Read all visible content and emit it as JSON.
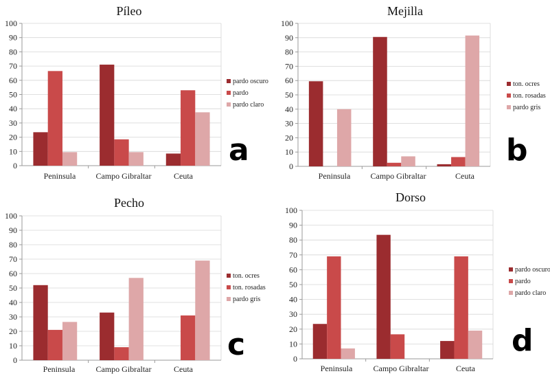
{
  "colors": {
    "dark": "#9b2c2f",
    "mid": "#c94a4a",
    "light": "#dea7a8"
  },
  "chart_data": [
    {
      "type": "bar",
      "title": "Píleo",
      "panel_letter": "a",
      "categories": [
        "Peninsula",
        "Campo Gibraltar",
        "Ceuta"
      ],
      "ylim": [
        0,
        100
      ],
      "yticks": [
        "0",
        "10",
        "20",
        "30",
        "40",
        "50",
        "60",
        "70",
        "80",
        "90",
        "100"
      ],
      "grid": true,
      "legend_position": "right",
      "series": [
        {
          "name": "pardo oscuro",
          "values": [
            23.5,
            71,
            8.5
          ]
        },
        {
          "name": "pardo",
          "values": [
            66.5,
            18.5,
            53
          ]
        },
        {
          "name": "pardo claro",
          "values": [
            9.5,
            9.5,
            37.5
          ]
        }
      ]
    },
    {
      "type": "bar",
      "title": "Mejilla",
      "panel_letter": "b",
      "categories": [
        "Peninsula",
        "Campo Gibraltar",
        "Ceuta"
      ],
      "ylim": [
        0,
        100
      ],
      "yticks": [
        "0",
        "10",
        "20",
        "30",
        "40",
        "50",
        "60",
        "70",
        "80",
        "90",
        "100"
      ],
      "grid": true,
      "legend_position": "right",
      "series": [
        {
          "name": "ton. ocres",
          "values": [
            59.5,
            90.5,
            1.5
          ]
        },
        {
          "name": "ton. rosadas",
          "values": [
            0,
            2.5,
            6.5
          ]
        },
        {
          "name": "pardo gris",
          "values": [
            40,
            7,
            91.5
          ]
        }
      ]
    },
    {
      "type": "bar",
      "title": "Pecho",
      "panel_letter": "c",
      "categories": [
        "Peninsula",
        "Campo Gibraltar",
        "Ceuta"
      ],
      "ylim": [
        0,
        100
      ],
      "yticks": [
        "0",
        "10",
        "20",
        "30",
        "40",
        "50",
        "60",
        "70",
        "80",
        "90",
        "100"
      ],
      "grid": true,
      "legend_position": "right",
      "series": [
        {
          "name": "ton. ocres",
          "values": [
            52,
            33,
            0
          ]
        },
        {
          "name": "ton. rosadas",
          "values": [
            21,
            9,
            31
          ]
        },
        {
          "name": "pardo gris",
          "values": [
            26.5,
            57,
            69
          ]
        }
      ]
    },
    {
      "type": "bar",
      "title": "Dorso",
      "panel_letter": "d",
      "categories": [
        "Peninsula",
        "Campo Gibraltar",
        "Ceuta"
      ],
      "ylim": [
        0,
        100
      ],
      "yticks": [
        "0",
        "10",
        "20",
        "30",
        "40",
        "50",
        "60",
        "70",
        "80",
        "90",
        "100"
      ],
      "grid": true,
      "legend_position": "right",
      "series": [
        {
          "name": "pardo oscuro",
          "values": [
            23.5,
            83.5,
            12
          ]
        },
        {
          "name": "pardo",
          "values": [
            69,
            16.5,
            69
          ]
        },
        {
          "name": "pardo claro",
          "values": [
            7,
            0,
            19
          ]
        }
      ]
    }
  ]
}
